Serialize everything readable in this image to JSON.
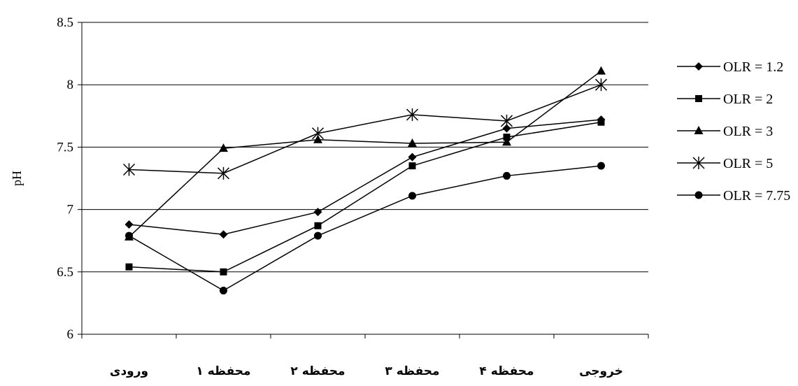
{
  "chart_data": {
    "type": "line",
    "title": "",
    "xlabel": "",
    "ylabel": "pH",
    "ylim": [
      6,
      8.5
    ],
    "yticks": [
      "6",
      "6.5",
      "7",
      "7.5",
      "8",
      "8.5"
    ],
    "categories": [
      "ورودی",
      "محفظه ۱",
      "محفظه ۲",
      "محفظه ۳",
      "محفظه ۴",
      "خروجی"
    ],
    "grid": true,
    "legend_position": "right",
    "series": [
      {
        "name": "OLR = 1.2",
        "marker": "diamond",
        "values": [
          6.88,
          6.8,
          6.98,
          7.42,
          7.65,
          7.72
        ]
      },
      {
        "name": "OLR = 2",
        "marker": "square",
        "values": [
          6.54,
          6.5,
          6.87,
          7.35,
          7.58,
          7.7
        ]
      },
      {
        "name": "OLR = 3",
        "marker": "triangle",
        "values": [
          6.78,
          7.49,
          7.56,
          7.53,
          7.54,
          8.11
        ]
      },
      {
        "name": "OLR = 5",
        "marker": "asterisk",
        "values": [
          7.32,
          7.29,
          7.61,
          7.76,
          7.71,
          8.0
        ]
      },
      {
        "name": "OLR = 7.75",
        "marker": "circle",
        "values": [
          6.79,
          6.35,
          6.79,
          7.11,
          7.27,
          7.35
        ]
      }
    ],
    "colors": {
      "line": "#000000",
      "grid": "#000000",
      "background": "#ffffff"
    }
  }
}
